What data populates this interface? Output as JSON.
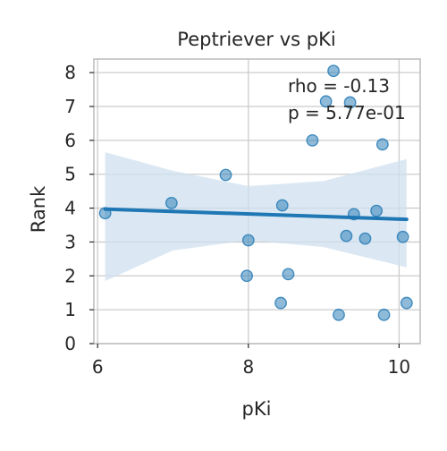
{
  "chart_data": {
    "type": "scatter",
    "title": "Peptriever vs pKi",
    "xlabel": "pKi",
    "ylabel": "Rank",
    "xlim": [
      5.95,
      10.28
    ],
    "ylim": [
      0,
      8.4
    ],
    "xticks": [
      6,
      8,
      10
    ],
    "xtick_labels": [
      "6",
      "8",
      "10"
    ],
    "yticks": [
      0,
      1,
      2,
      3,
      4,
      5,
      6,
      7,
      8
    ],
    "ytick_labels": [
      "0",
      "1",
      "2",
      "3",
      "4",
      "5",
      "6",
      "7",
      "8"
    ],
    "grid": true,
    "points": [
      {
        "x": 6.1,
        "y": 3.85
      },
      {
        "x": 6.98,
        "y": 4.15
      },
      {
        "x": 7.7,
        "y": 4.98
      },
      {
        "x": 7.98,
        "y": 2.0
      },
      {
        "x": 8.0,
        "y": 3.05
      },
      {
        "x": 8.43,
        "y": 1.2
      },
      {
        "x": 8.45,
        "y": 4.08
      },
      {
        "x": 8.53,
        "y": 2.05
      },
      {
        "x": 8.85,
        "y": 6.0
      },
      {
        "x": 9.03,
        "y": 7.15
      },
      {
        "x": 9.13,
        "y": 8.05
      },
      {
        "x": 9.2,
        "y": 0.85
      },
      {
        "x": 9.3,
        "y": 3.18
      },
      {
        "x": 9.35,
        "y": 7.12
      },
      {
        "x": 9.4,
        "y": 3.82
      },
      {
        "x": 9.55,
        "y": 3.1
      },
      {
        "x": 9.7,
        "y": 3.92
      },
      {
        "x": 9.78,
        "y": 5.88
      },
      {
        "x": 9.8,
        "y": 0.85
      },
      {
        "x": 10.05,
        "y": 3.15
      },
      {
        "x": 10.1,
        "y": 1.2
      }
    ],
    "regression": {
      "x": [
        6.1,
        10.1
      ],
      "y": [
        3.97,
        3.67
      ]
    },
    "confidence_band": {
      "x": [
        6.1,
        7.0,
        8.0,
        9.0,
        10.1
      ],
      "lower": [
        1.85,
        2.75,
        3.05,
        2.85,
        2.25
      ],
      "upper": [
        5.65,
        5.1,
        4.65,
        4.8,
        5.45
      ]
    },
    "annotation": [
      "rho = -0.13",
      "p = 5.77e-01"
    ],
    "colors": {
      "point": "#1f77b4",
      "line": "#1f77b4",
      "band": "#cfe0ef",
      "grid": "#cccccc",
      "axis": "#bfbfbf"
    }
  }
}
